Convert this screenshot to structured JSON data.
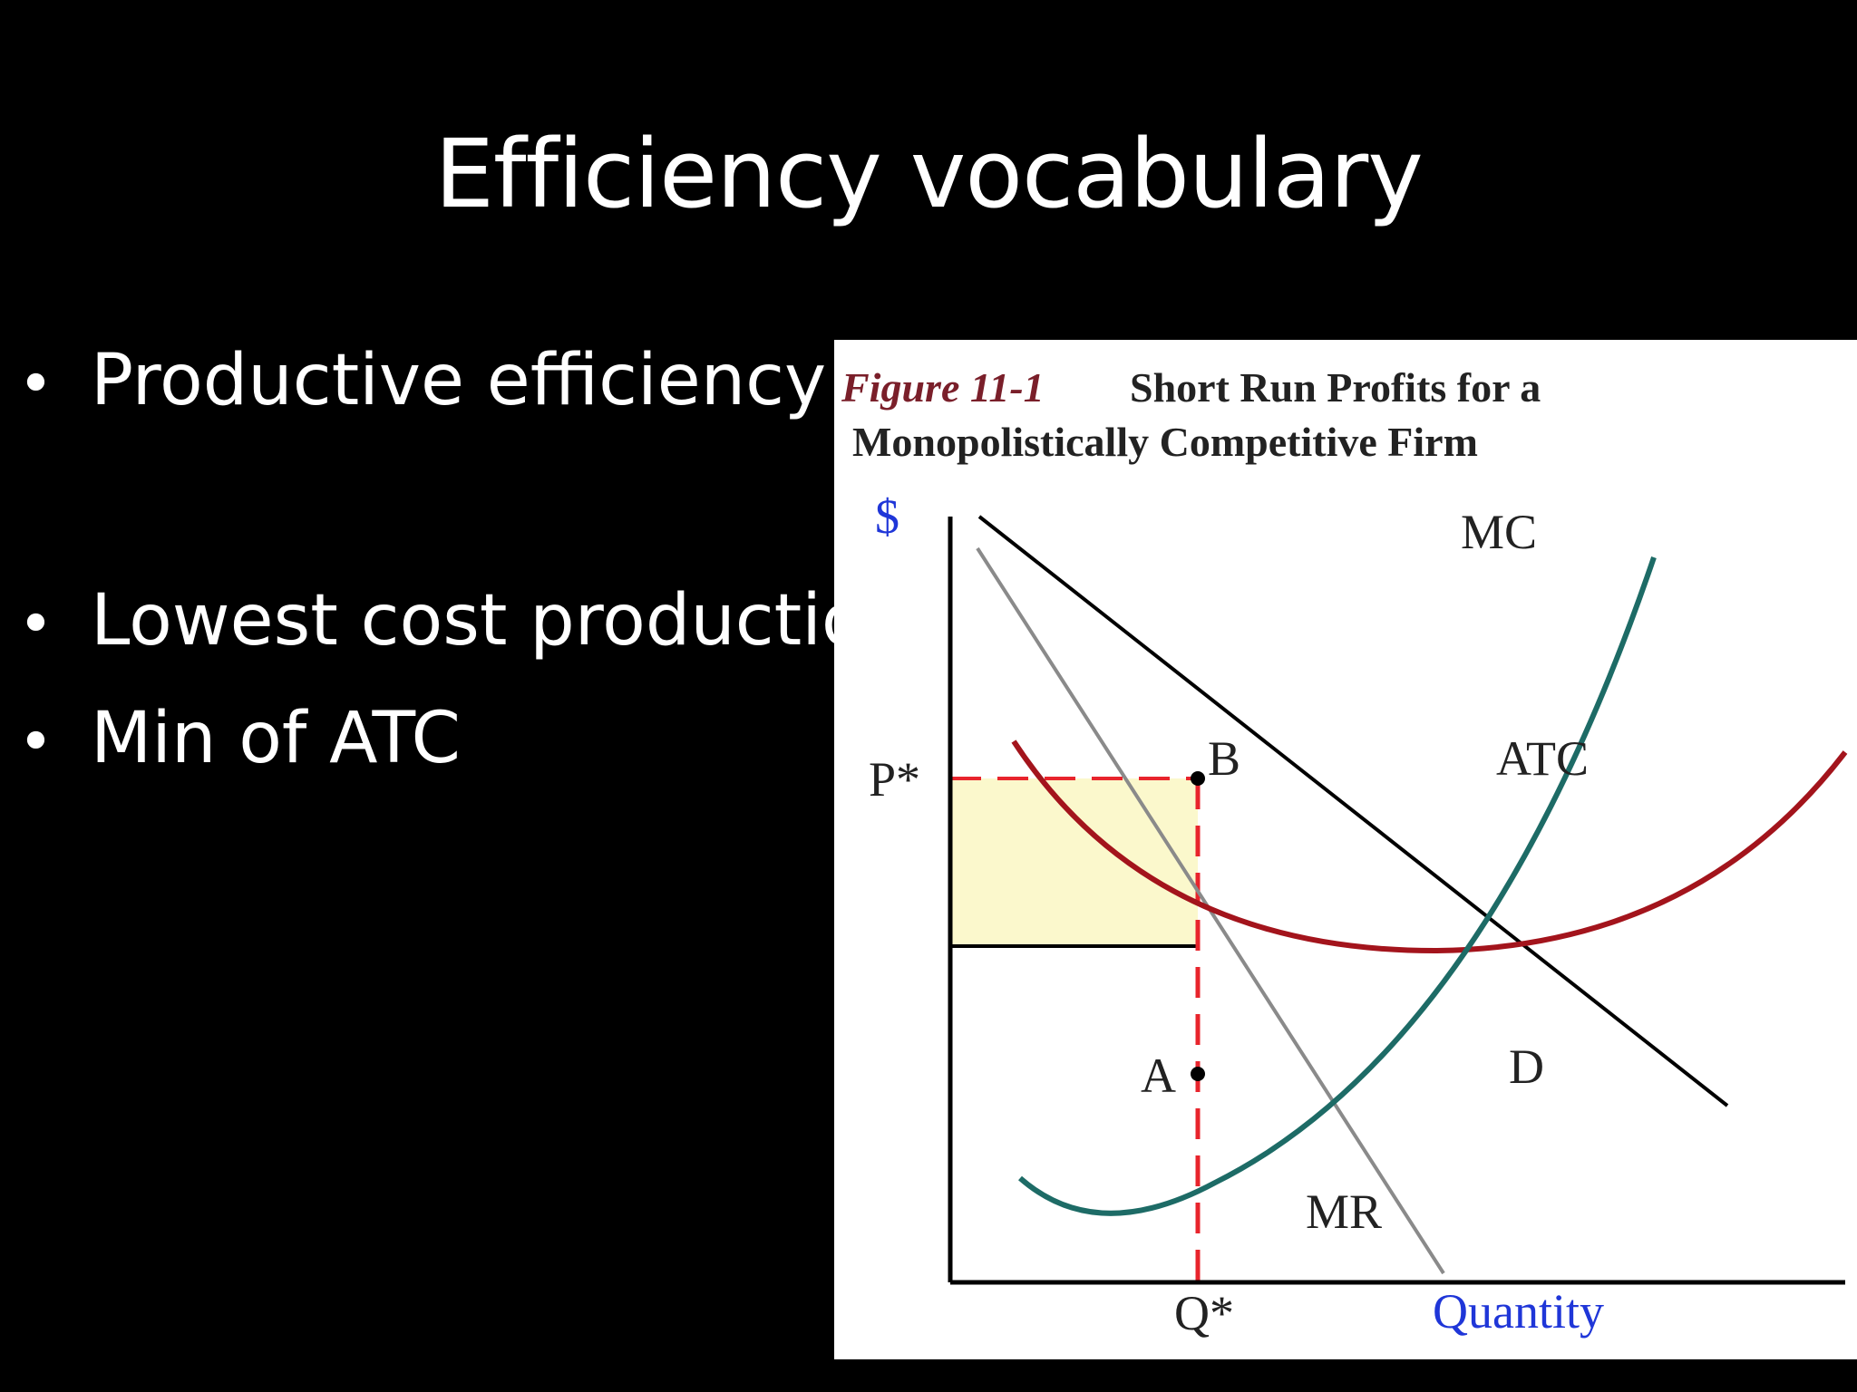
{
  "slide": {
    "title": "Efficiency vocabulary",
    "bullets": [
      {
        "marker": "•",
        "text": "Productive efficiency"
      },
      {
        "marker": "•",
        "text": "Lowest cost  production"
      },
      {
        "marker": "•",
        "text": "Min of ATC"
      }
    ]
  },
  "figure": {
    "title_number": "Figure 11-1",
    "title_line1": "Short Run Profits for a",
    "title_line2": "Monopolistically Competitive Firm",
    "y_axis_label": "$",
    "x_axis_label": "Quantity",
    "price_label": "P*",
    "quantity_label": "Q*",
    "curve_labels": {
      "mc": "MC",
      "atc": "ATC",
      "demand": "D",
      "mr": "MR"
    },
    "point_labels": {
      "b": "B",
      "a": "A"
    },
    "colors": {
      "mc": "#1d6b66",
      "atc": "#a3141c",
      "demand": "#000000",
      "mr": "#8a8a8a",
      "profit_area": "#fbf8cc",
      "dashed_guides": "#e8242c",
      "axis_label_blue": "#1f36d8",
      "title_number": "#7a1f2a"
    }
  }
}
